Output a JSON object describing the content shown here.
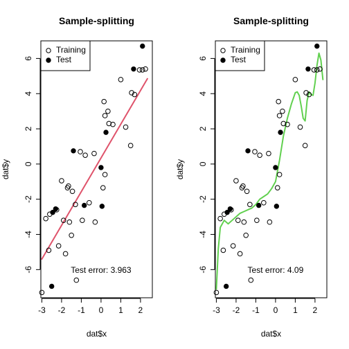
{
  "chart_data": [
    {
      "type": "scatter",
      "title": "Sample-splitting",
      "xlabel": "dat$x",
      "ylabel": "dat$y",
      "xlim": [
        -3.05,
        2.6
      ],
      "ylim": [
        -7.6,
        7.0
      ],
      "xticks": [
        -3,
        -2,
        -1,
        0,
        1,
        2
      ],
      "yticks": [
        -6,
        -4,
        -2,
        0,
        2,
        4,
        6
      ],
      "legend": {
        "position": "top-left",
        "entries": [
          "Training",
          "Test"
        ]
      },
      "annotation": {
        "text": "Test error: 3.963",
        "x": 0.0,
        "y": -6.05
      },
      "series": [
        {
          "name": "Training",
          "marker": "open-circle",
          "points": [
            [
              -3.0,
              -7.3
            ],
            [
              -2.8,
              -3.1
            ],
            [
              -2.6,
              -2.85
            ],
            [
              -2.65,
              -4.9
            ],
            [
              -2.25,
              -2.6
            ],
            [
              -2.15,
              -4.65
            ],
            [
              -2.0,
              -0.95
            ],
            [
              -1.9,
              -3.2
            ],
            [
              -1.8,
              -5.1
            ],
            [
              -1.7,
              -1.35
            ],
            [
              -1.65,
              -1.25
            ],
            [
              -1.6,
              -3.3
            ],
            [
              -1.5,
              -4.05
            ],
            [
              -1.45,
              -1.55
            ],
            [
              -1.3,
              -2.3
            ],
            [
              -1.25,
              -6.6
            ],
            [
              -1.05,
              0.7
            ],
            [
              -0.95,
              -3.2
            ],
            [
              -0.8,
              0.5
            ],
            [
              -0.6,
              -2.2
            ],
            [
              -0.3,
              -3.3
            ],
            [
              -0.35,
              0.6
            ],
            [
              0.1,
              -1.35
            ],
            [
              0.2,
              -0.6
            ],
            [
              0.15,
              3.55
            ],
            [
              0.2,
              2.75
            ],
            [
              0.35,
              3.0
            ],
            [
              0.4,
              2.3
            ],
            [
              0.6,
              2.25
            ],
            [
              1.0,
              4.8
            ],
            [
              1.25,
              2.1
            ],
            [
              1.5,
              1.05
            ],
            [
              1.55,
              4.05
            ],
            [
              1.7,
              3.95
            ],
            [
              1.95,
              5.35
            ],
            [
              2.1,
              5.35
            ],
            [
              2.25,
              5.4
            ]
          ]
        },
        {
          "name": "Test",
          "marker": "filled-circle",
          "points": [
            [
              -2.5,
              -6.95
            ],
            [
              -2.45,
              -2.75
            ],
            [
              -2.3,
              -2.55
            ],
            [
              -1.4,
              0.75
            ],
            [
              -0.85,
              -2.35
            ],
            [
              0.0,
              -0.2
            ],
            [
              0.05,
              -2.4
            ],
            [
              0.25,
              1.8
            ],
            [
              1.65,
              5.4
            ],
            [
              2.1,
              6.7
            ]
          ]
        }
      ],
      "fit": {
        "name": "linear",
        "color": "#df536b",
        "x": [
          -3.0,
          2.35
        ],
        "y": [
          -5.4,
          4.85
        ]
      }
    },
    {
      "type": "scatter",
      "title": "Sample-splitting",
      "xlabel": "dat$x",
      "ylabel": "dat$y",
      "xlim": [
        -3.05,
        2.6
      ],
      "ylim": [
        -7.6,
        7.0
      ],
      "xticks": [
        -3,
        -2,
        -1,
        0,
        1,
        2
      ],
      "yticks": [
        -6,
        -4,
        -2,
        0,
        2,
        4,
        6
      ],
      "legend": {
        "position": "top-left",
        "entries": [
          "Training",
          "Test"
        ]
      },
      "annotation": {
        "text": "Test error: 4.09",
        "x": 0.0,
        "y": -6.05
      },
      "series": [
        {
          "name": "Training",
          "marker": "open-circle",
          "points": [
            [
              -3.0,
              -7.3
            ],
            [
              -2.8,
              -3.1
            ],
            [
              -2.6,
              -2.85
            ],
            [
              -2.65,
              -4.9
            ],
            [
              -2.25,
              -2.6
            ],
            [
              -2.15,
              -4.65
            ],
            [
              -2.0,
              -0.95
            ],
            [
              -1.9,
              -3.2
            ],
            [
              -1.8,
              -5.1
            ],
            [
              -1.7,
              -1.35
            ],
            [
              -1.65,
              -1.25
            ],
            [
              -1.6,
              -3.3
            ],
            [
              -1.5,
              -4.05
            ],
            [
              -1.45,
              -1.55
            ],
            [
              -1.3,
              -2.3
            ],
            [
              -1.25,
              -6.6
            ],
            [
              -1.05,
              0.7
            ],
            [
              -0.95,
              -3.2
            ],
            [
              -0.8,
              0.5
            ],
            [
              -0.6,
              -2.2
            ],
            [
              -0.3,
              -3.3
            ],
            [
              -0.35,
              0.6
            ],
            [
              0.1,
              -1.35
            ],
            [
              0.2,
              -0.6
            ],
            [
              0.15,
              3.55
            ],
            [
              0.2,
              2.75
            ],
            [
              0.35,
              3.0
            ],
            [
              0.4,
              2.3
            ],
            [
              0.6,
              2.25
            ],
            [
              1.0,
              4.8
            ],
            [
              1.25,
              2.1
            ],
            [
              1.5,
              1.05
            ],
            [
              1.55,
              4.05
            ],
            [
              1.7,
              3.95
            ],
            [
              1.95,
              5.35
            ],
            [
              2.1,
              5.35
            ],
            [
              2.25,
              5.4
            ]
          ]
        },
        {
          "name": "Test",
          "marker": "filled-circle",
          "points": [
            [
              -2.5,
              -6.95
            ],
            [
              -2.45,
              -2.75
            ],
            [
              -2.3,
              -2.55
            ],
            [
              -1.4,
              0.75
            ],
            [
              -0.85,
              -2.35
            ],
            [
              0.0,
              -0.2
            ],
            [
              0.05,
              -2.4
            ],
            [
              0.25,
              1.8
            ],
            [
              1.65,
              5.4
            ],
            [
              2.1,
              6.7
            ]
          ]
        }
      ],
      "fit": {
        "name": "smoothing-spline",
        "color": "#61d04f",
        "x": [
          -3.0,
          -2.9,
          -2.8,
          -2.6,
          -2.4,
          -2.2,
          -2.0,
          -1.8,
          -1.6,
          -1.4,
          -1.2,
          -1.0,
          -0.8,
          -0.6,
          -0.4,
          -0.2,
          0.0,
          0.2,
          0.4,
          0.6,
          0.8,
          1.0,
          1.1,
          1.2,
          1.3,
          1.4,
          1.5,
          1.6,
          1.7,
          1.8,
          1.9,
          2.0,
          2.1,
          2.2,
          2.3,
          2.4
        ],
        "y": [
          -7.1,
          -4.8,
          -3.6,
          -3.2,
          -3.4,
          -3.2,
          -3.0,
          -2.8,
          -2.7,
          -2.6,
          -2.5,
          -2.3,
          -2.0,
          -1.85,
          -1.7,
          -1.4,
          -1.0,
          0.2,
          1.6,
          2.6,
          3.4,
          4.05,
          4.1,
          3.9,
          3.3,
          2.6,
          2.45,
          3.6,
          4.1,
          3.95,
          3.9,
          4.6,
          5.6,
          6.3,
          5.9,
          4.8
        ]
      }
    }
  ]
}
